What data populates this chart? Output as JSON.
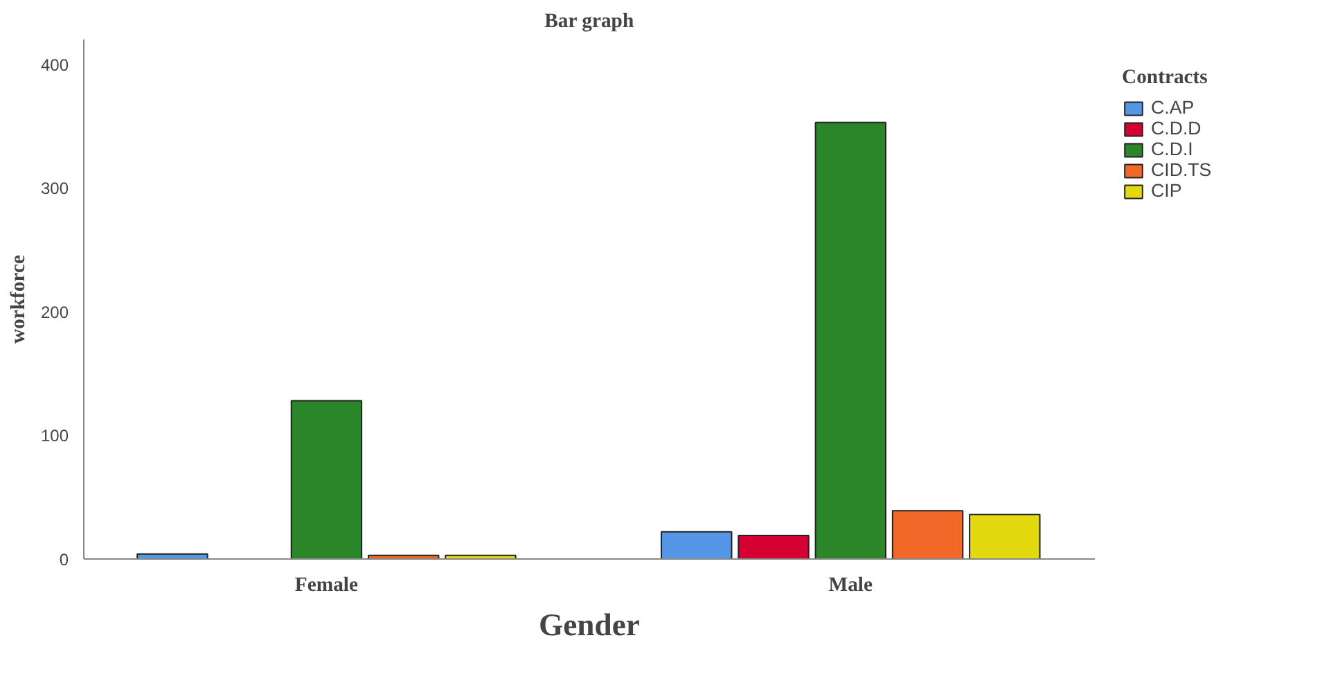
{
  "chart_data": {
    "type": "bar",
    "title": "Bar graph",
    "xlabel": "Gender",
    "ylabel": "workforce",
    "legend_title": "Contracts",
    "categories": [
      "Female",
      "Male"
    ],
    "series": [
      {
        "name": "C.AP",
        "color": "#5596e6",
        "values": [
          4,
          22
        ]
      },
      {
        "name": "C.D.D",
        "color": "#d50032",
        "values": [
          null,
          19
        ]
      },
      {
        "name": "C.D.I",
        "color": "#2a8629",
        "values": [
          128,
          353
        ]
      },
      {
        "name": "CID.TS",
        "color": "#f26829",
        "values": [
          3,
          39
        ]
      },
      {
        "name": "CIP",
        "color": "#e2d90f",
        "values": [
          3,
          36
        ]
      }
    ],
    "ylim": [
      0,
      420
    ],
    "yticks": [
      0,
      100,
      200,
      300,
      400
    ],
    "grid": false,
    "legend": "right"
  }
}
